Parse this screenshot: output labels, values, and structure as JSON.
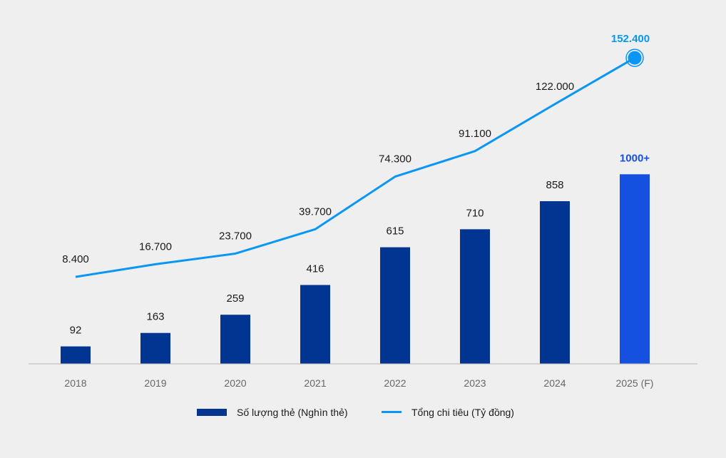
{
  "chart_data": {
    "type": "bar+line",
    "categories": [
      "2018",
      "2019",
      "2020",
      "2021",
      "2022",
      "2023",
      "2024",
      "2025 (F)"
    ],
    "series": [
      {
        "name": "Số lượng thẻ (Nghìn thẻ)",
        "type": "bar",
        "values": [
          92,
          163,
          259,
          416,
          615,
          710,
          858,
          1000
        ],
        "labels": [
          "92",
          "163",
          "259",
          "416",
          "615",
          "710",
          "858",
          "1000+"
        ]
      },
      {
        "name": "Tổng chi tiêu (Tỷ đồng)",
        "type": "line",
        "values": [
          8400,
          16700,
          23700,
          39700,
          74300,
          91100,
          122000,
          152400
        ],
        "labels": [
          "8.400",
          "16.700",
          "23.700",
          "39.700",
          "74.300",
          "91.100",
          "122.000",
          "152.400"
        ]
      }
    ],
    "legend_position": "bottom",
    "grid": false,
    "colors": {
      "bar": "#023592",
      "bar_highlight": "#1550e0",
      "line": "#0a96f5",
      "axis": "#b5b5b5",
      "text": "#1a1a1a",
      "tick": "#666666"
    }
  }
}
